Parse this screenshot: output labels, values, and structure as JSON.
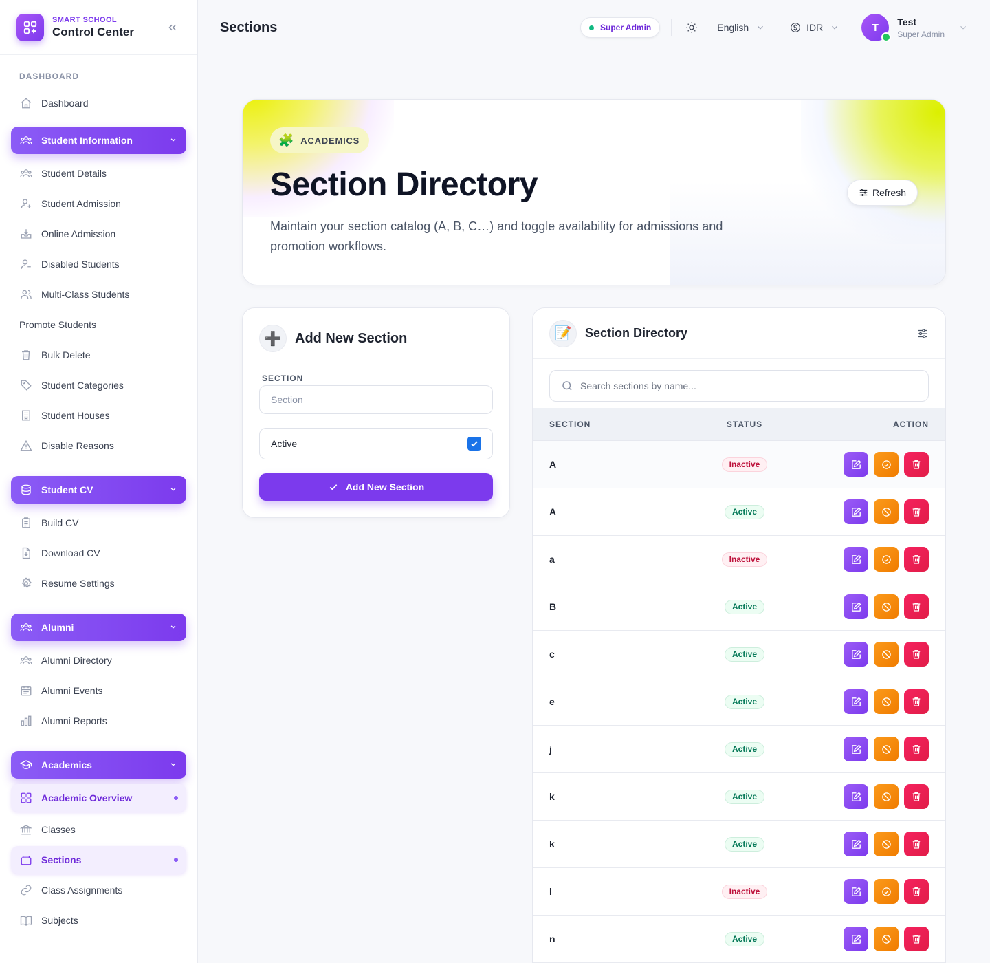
{
  "brand": {
    "small": "SMART SCHOOL",
    "big": "Control Center"
  },
  "sidebar": {
    "dashboard_label": "DASHBOARD",
    "dashboard_item": "Dashboard",
    "groups": {
      "student_information": {
        "label": "Student Information",
        "items": [
          "Student Details",
          "Student Admission",
          "Online Admission",
          "Disabled Students",
          "Multi-Class Students",
          "Promote Students",
          "Bulk Delete",
          "Student Categories",
          "Student Houses",
          "Disable Reasons"
        ]
      },
      "student_cv": {
        "label": "Student CV",
        "items": [
          "Build CV",
          "Download CV",
          "Resume Settings"
        ]
      },
      "alumni": {
        "label": "Alumni",
        "items": [
          "Alumni Directory",
          "Alumni Events",
          "Alumni Reports"
        ]
      },
      "academics": {
        "label": "Academics",
        "items": [
          "Academic Overview",
          "Classes",
          "Sections",
          "Class Assignments",
          "Subjects"
        ]
      }
    }
  },
  "topbar": {
    "title": "Sections",
    "role_badge": "Super Admin",
    "language": "English",
    "currency": "IDR",
    "user": {
      "initial": "T",
      "name": "Test",
      "role": "Super Admin"
    }
  },
  "hero": {
    "pill": "ACADEMICS",
    "title": "Section Directory",
    "description": "Maintain your section catalog (A, B, C…) and toggle availability for admissions and promotion workflows.",
    "refresh_label": "Refresh"
  },
  "add_form": {
    "title": "Add New Section",
    "field_label": "SECTION",
    "field_placeholder": "Section",
    "active_label": "Active",
    "active_checked": true,
    "submit_label": "Add New Section"
  },
  "directory": {
    "title": "Section Directory",
    "search_placeholder": "Search sections by name...",
    "columns": {
      "section": "SECTION",
      "status": "STATUS",
      "action": "ACTION"
    },
    "rows": [
      {
        "name": "A",
        "status": "Inactive"
      },
      {
        "name": "A",
        "status": "Active"
      },
      {
        "name": "a",
        "status": "Inactive"
      },
      {
        "name": "B",
        "status": "Active"
      },
      {
        "name": "c",
        "status": "Active"
      },
      {
        "name": "e",
        "status": "Active"
      },
      {
        "name": "j",
        "status": "Active"
      },
      {
        "name": "k",
        "status": "Active"
      },
      {
        "name": "k",
        "status": "Active"
      },
      {
        "name": "l",
        "status": "Inactive"
      },
      {
        "name": "n",
        "status": "Active"
      }
    ]
  },
  "colors": {
    "accent": "#7c3aed",
    "edit": "#8b5cf6",
    "toggle": "#f59e0b",
    "delete": "#e11d48",
    "active_text": "#047857",
    "inactive_text": "#be123c"
  }
}
